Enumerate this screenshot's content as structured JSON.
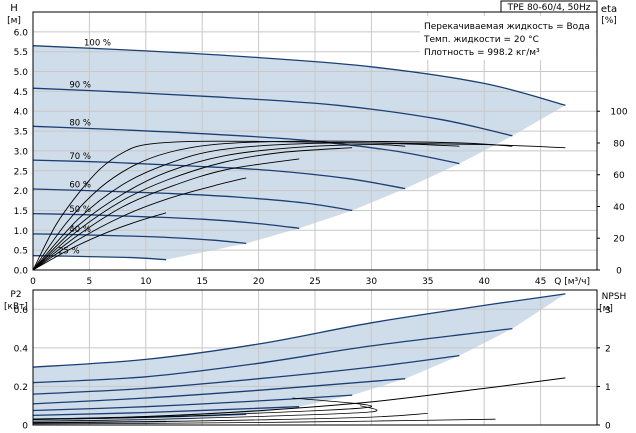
{
  "chart_data": [
    {
      "type": "line",
      "title": "TPE 80-60/4, 50Hz",
      "y_label_left": "H",
      "y_unit_left": "[м]",
      "y_label_right": "eta",
      "y_unit_right": "[%]",
      "xlabel": "Q [м³/ч]",
      "xlim": [
        0,
        50
      ],
      "ylim": [
        0,
        6.5
      ],
      "ylim_right": [
        0,
        162.5
      ],
      "x_ticks": [
        "0",
        "5",
        "10",
        "15",
        "20",
        "25",
        "30",
        "35",
        "40",
        "45"
      ],
      "y_ticks": [
        "0.0",
        "0.5",
        "1.0",
        "1.5",
        "2.0",
        "2.5",
        "3.0",
        "3.5",
        "4.0",
        "4.5",
        "5.0",
        "5.5",
        "6.0"
      ],
      "y_ticks_right": [
        "0",
        "20",
        "40",
        "60",
        "80",
        "100"
      ],
      "grid": true,
      "info_lines": [
        "Перекачиваемая жидкость = Вода",
        "Темп. жидкости = 20 °C",
        "Плотность = 998.2 кг/м³"
      ],
      "speed_labels": [
        "100 %",
        "90 %",
        "80 %",
        "70 %",
        "60 %",
        "50 %",
        "40 %",
        "25 %"
      ],
      "colors": {
        "curve": "#1c3f73",
        "region": "#cfdcea",
        "grid": "#c8c8c8",
        "eta": "#000000"
      },
      "head_series": [
        {
          "name": "100 %",
          "points": [
            [
              0,
              5.65
            ],
            [
              10,
              5.52
            ],
            [
              20,
              5.35
            ],
            [
              30,
              5.12
            ],
            [
              40,
              4.7
            ],
            [
              47.2,
              4.15
            ]
          ]
        },
        {
          "name": "90 %",
          "points": [
            [
              0,
              4.58
            ],
            [
              9,
              4.47
            ],
            [
              18,
              4.33
            ],
            [
              27,
              4.15
            ],
            [
              36,
              3.8
            ],
            [
              42.5,
              3.38
            ]
          ]
        },
        {
          "name": "80 %",
          "points": [
            [
              0,
              3.62
            ],
            [
              8,
              3.53
            ],
            [
              16,
              3.42
            ],
            [
              24,
              3.27
            ],
            [
              32,
              3.0
            ],
            [
              37.8,
              2.68
            ]
          ]
        },
        {
          "name": "70 %",
          "points": [
            [
              0,
              2.77
            ],
            [
              7,
              2.71
            ],
            [
              14,
              2.62
            ],
            [
              21,
              2.51
            ],
            [
              28,
              2.3
            ],
            [
              33,
              2.05
            ]
          ]
        },
        {
          "points": [
            [
              0,
              2.04
            ],
            [
              6,
              1.99
            ],
            [
              12,
              1.93
            ],
            [
              18,
              1.84
            ],
            [
              24,
              1.69
            ],
            [
              28.3,
              1.5
            ]
          ]
        },
        {
          "points": [
            [
              0,
              1.42
            ],
            [
              5,
              1.39
            ],
            [
              10,
              1.34
            ],
            [
              15,
              1.28
            ],
            [
              20,
              1.17
            ],
            [
              23.6,
              1.05
            ]
          ]
        },
        {
          "points": [
            [
              0,
              0.91
            ],
            [
              4,
              0.89
            ],
            [
              8,
              0.86
            ],
            [
              12,
              0.82
            ],
            [
              16,
              0.75
            ],
            [
              18.9,
              0.67
            ]
          ]
        },
        {
          "points": [
            [
              0,
              0.36
            ],
            [
              3,
              0.35
            ],
            [
              6,
              0.33
            ],
            [
              9,
              0.31
            ],
            [
              11.8,
              0.26
            ]
          ]
        }
      ],
      "eta_series": [
        {
          "points": [
            [
              0,
              0
            ],
            [
              2,
              28
            ],
            [
              4,
              48
            ],
            [
              6,
              64
            ],
            [
              8,
              74
            ],
            [
              10,
              79
            ],
            [
              14,
              81
            ],
            [
              20,
              81
            ],
            [
              30,
              80
            ],
            [
              40,
              79
            ],
            [
              47.2,
              77
            ]
          ]
        },
        {
          "points": [
            [
              0,
              0
            ],
            [
              3,
              30
            ],
            [
              6,
              52
            ],
            [
              9,
              66
            ],
            [
              12,
              74
            ],
            [
              16,
              79
            ],
            [
              22,
              81
            ],
            [
              30,
              81
            ],
            [
              38,
              80
            ],
            [
              42.5,
              78
            ]
          ]
        },
        {
          "points": [
            [
              0,
              0
            ],
            [
              4,
              32
            ],
            [
              8,
              54
            ],
            [
              12,
              67
            ],
            [
              16,
              75
            ],
            [
              22,
              79
            ],
            [
              30,
              80
            ],
            [
              37.8,
              78
            ]
          ]
        },
        {
          "points": [
            [
              0,
              0
            ],
            [
              4,
              28
            ],
            [
              8,
              48
            ],
            [
              12,
              62
            ],
            [
              17,
              72
            ],
            [
              23,
              77
            ],
            [
              30,
              79
            ],
            [
              33,
              78
            ]
          ]
        },
        {
          "points": [
            [
              0,
              0
            ],
            [
              4,
              25
            ],
            [
              8,
              44
            ],
            [
              12,
              57
            ],
            [
              17,
              68
            ],
            [
              22,
              74
            ],
            [
              28.3,
              77
            ]
          ]
        },
        {
          "points": [
            [
              0,
              0
            ],
            [
              4,
              22
            ],
            [
              8,
              40
            ],
            [
              12,
              52
            ],
            [
              17,
              63
            ],
            [
              23.6,
              70
            ]
          ]
        },
        {
          "points": [
            [
              0,
              0
            ],
            [
              4,
              19
            ],
            [
              8,
              34
            ],
            [
              12,
              45
            ],
            [
              16,
              53
            ],
            [
              18.9,
              58
            ]
          ]
        },
        {
          "points": [
            [
              0,
              0
            ],
            [
              3,
              12
            ],
            [
              6,
              22
            ],
            [
              9,
              30
            ],
            [
              11.8,
              36
            ]
          ]
        }
      ]
    },
    {
      "type": "line",
      "y_label_left": "P2",
      "y_unit_left": "[кВт]",
      "y_label_right": "NPSH",
      "y_unit_right": "[м]",
      "xlim": [
        0,
        50
      ],
      "ylim": [
        0,
        0.7
      ],
      "ylim_right": [
        0,
        3.5
      ],
      "y_ticks": [
        "0",
        "0.2",
        "0.4",
        "0.6"
      ],
      "y_ticks_right": [
        "0",
        "1",
        "2",
        "3"
      ],
      "grid": true,
      "power_series": [
        {
          "name": "100 %",
          "points": [
            [
              0,
              0.3
            ],
            [
              10,
              0.34
            ],
            [
              20,
              0.42
            ],
            [
              30,
              0.53
            ],
            [
              40,
              0.62
            ],
            [
              47.2,
              0.68
            ]
          ]
        },
        {
          "name": "90 %",
          "points": [
            [
              0,
              0.22
            ],
            [
              10,
              0.25
            ],
            [
              20,
              0.32
            ],
            [
              30,
              0.41
            ],
            [
              42.5,
              0.5
            ]
          ]
        },
        {
          "name": "80 %",
          "points": [
            [
              0,
              0.16
            ],
            [
              10,
              0.19
            ],
            [
              20,
              0.24
            ],
            [
              30,
              0.3
            ],
            [
              37.8,
              0.36
            ]
          ]
        },
        {
          "name": "70 %",
          "points": [
            [
              0,
              0.11
            ],
            [
              10,
              0.14
            ],
            [
              20,
              0.18
            ],
            [
              33,
              0.24
            ]
          ]
        },
        {
          "points": [
            [
              0,
              0.075
            ],
            [
              10,
              0.095
            ],
            [
              20,
              0.125
            ],
            [
              28.3,
              0.155
            ]
          ]
        },
        {
          "points": [
            [
              0,
              0.05
            ],
            [
              10,
              0.065
            ],
            [
              23.6,
              0.095
            ]
          ]
        },
        {
          "points": [
            [
              0,
              0.03
            ],
            [
              10,
              0.04
            ],
            [
              18.9,
              0.055
            ]
          ]
        },
        {
          "points": [
            [
              0,
              0.012
            ],
            [
              11.8,
              0.018
            ]
          ]
        }
      ],
      "npsh_series": [
        {
          "name": "NPSH",
          "points": [
            [
              0,
              0.15
            ],
            [
              10,
              0.22
            ],
            [
              20,
              0.37
            ],
            [
              30,
              0.6
            ],
            [
              40,
              0.95
            ],
            [
              47.2,
              1.22
            ]
          ]
        }
      ]
    }
  ]
}
